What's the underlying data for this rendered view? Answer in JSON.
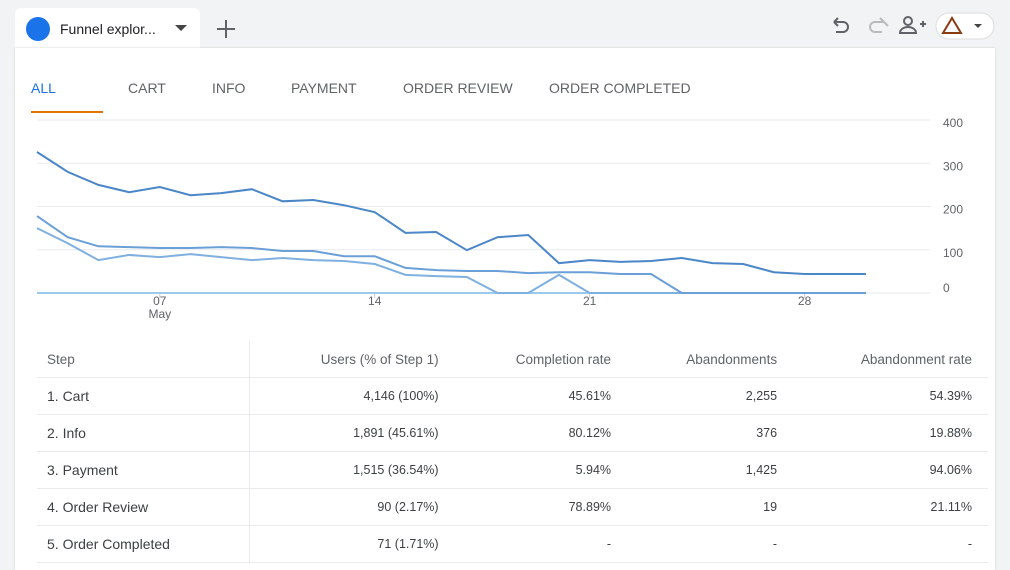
{
  "header": {
    "tab_title": "Funnel explor..."
  },
  "tabs": [
    "ALL",
    "CART",
    "INFO",
    "PAYMENT",
    "ORDER REVIEW",
    "ORDER COMPLETED"
  ],
  "chart_data": {
    "type": "line",
    "categories": [
      null,
      null,
      null,
      null,
      "07",
      null,
      null,
      null,
      null,
      null,
      null,
      "14",
      null,
      null,
      null,
      null,
      null,
      null,
      "21",
      null,
      null,
      null,
      null,
      null,
      null,
      "28",
      null,
      null
    ],
    "month_label": "May",
    "series": [
      {
        "color": "#4a86c8",
        "values": [
          326,
          280,
          250,
          233,
          245,
          226,
          231,
          240,
          212,
          215,
          203,
          187,
          139,
          141,
          99,
          129,
          134,
          69,
          76,
          72,
          74,
          81,
          69,
          67,
          48,
          44,
          44,
          44
        ]
      },
      {
        "color": "#6a9fd8",
        "values": [
          178,
          129,
          108,
          106,
          104,
          104,
          106,
          104,
          97,
          97,
          85,
          85,
          58,
          53,
          51,
          51,
          46,
          48,
          48,
          44,
          44,
          0,
          0,
          0,
          0,
          0,
          0,
          0
        ]
      },
      {
        "color": "#7fb0e0",
        "values": [
          150,
          115,
          76,
          88,
          83,
          90,
          83,
          76,
          81,
          76,
          74,
          67,
          42,
          39,
          37,
          0,
          0,
          42,
          0,
          0,
          0,
          0,
          0,
          0,
          0,
          0,
          0,
          0
        ]
      },
      {
        "color": "#9ccaee",
        "values": [
          0,
          0,
          0,
          0,
          0,
          0,
          0,
          0,
          0,
          0,
          0,
          0,
          0,
          0,
          0,
          0,
          0,
          0,
          0,
          0,
          0,
          0,
          0,
          0,
          0,
          0,
          0,
          0
        ]
      }
    ],
    "ylim": [
      0,
      400
    ],
    "yticks": [
      0,
      100,
      200,
      300,
      400
    ],
    "grid": true
  },
  "table": {
    "headers": [
      "Step",
      "Users (% of Step 1)",
      "Completion rate",
      "Abandonments",
      "Abandonment rate"
    ],
    "rows": [
      [
        "1. Cart",
        "4,146 (100%)",
        "45.61%",
        "2,255",
        "54.39%"
      ],
      [
        "2. Info",
        "1,891 (45.61%)",
        "80.12%",
        "376",
        "19.88%"
      ],
      [
        "3. Payment",
        "1,515 (36.54%)",
        "5.94%",
        "1,425",
        "94.06%"
      ],
      [
        "4. Order Review",
        "90 (2.17%)",
        "78.89%",
        "19",
        "21.11%"
      ],
      [
        "5. Order Completed",
        "71 (1.71%)",
        "-",
        "-",
        "-"
      ]
    ]
  }
}
